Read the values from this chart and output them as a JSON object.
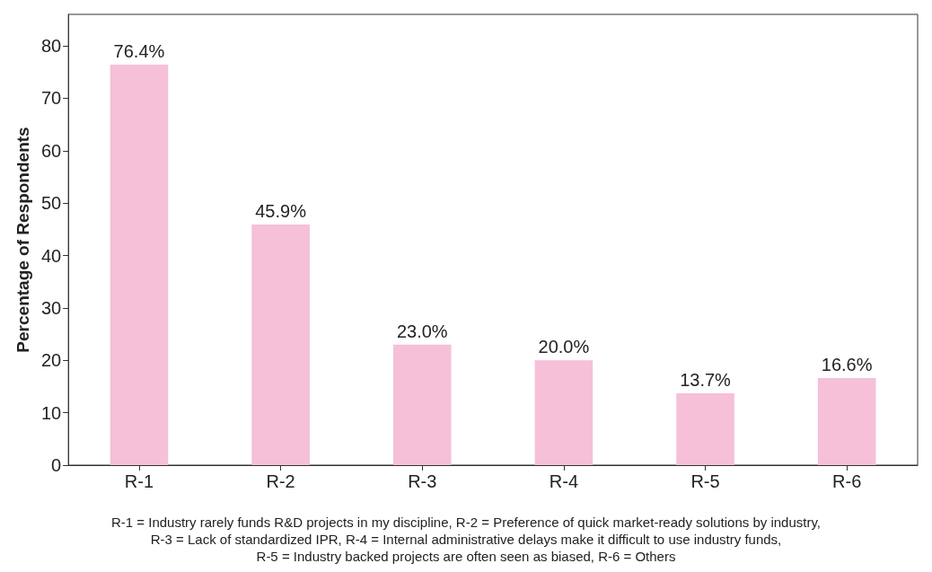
{
  "chart_data": {
    "type": "bar",
    "ylabel": "Percentage of Respondents",
    "categories": [
      "R-1",
      "R-2",
      "R-3",
      "R-4",
      "R-5",
      "R-6"
    ],
    "values": [
      76.4,
      45.9,
      23.0,
      20.0,
      13.7,
      16.6
    ],
    "value_labels": [
      "76.4%",
      "45.9%",
      "23.0%",
      "20.0%",
      "13.7%",
      "16.6%"
    ],
    "color": "#f5c0d8",
    "ylim": [
      0,
      86
    ],
    "yticks": [
      0,
      10,
      20,
      30,
      40,
      50,
      60,
      70,
      80
    ],
    "grid": false,
    "annotations": [
      "R-1 = Industry rarely funds R&D projects in my discipline, R-2 = Preference of quick market-ready solutions by industry,",
      "R-3 = Lack of standardized IPR, R-4 = Internal administrative delays make it difficult to use industry funds,",
      "R-5 = Industry backed projects are often seen as biased, R-6 = Others"
    ]
  }
}
